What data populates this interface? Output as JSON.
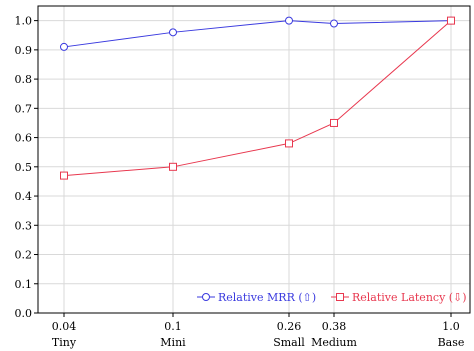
{
  "chart_data": {
    "type": "line",
    "x": [
      0.04,
      0.1,
      0.26,
      0.38,
      1.0
    ],
    "x_tick_labels": [
      "0.04",
      "0.1",
      "0.26",
      "0.38",
      "1.0"
    ],
    "x_category_labels": [
      "Tiny",
      "Mini",
      "Small",
      "Medium",
      "Base"
    ],
    "y_tick_labels": [
      "0.0",
      "0.1",
      "0.2",
      "0.3",
      "0.4",
      "0.5",
      "0.6",
      "0.7",
      "0.8",
      "0.9",
      "1.0"
    ],
    "ylim": [
      0.0,
      1.05
    ],
    "grid": true,
    "legend_position": "bottom-right",
    "series": [
      {
        "name": "Relative MRR (⇧)",
        "values": [
          0.91,
          0.96,
          1.0,
          0.99,
          1.0
        ],
        "color": "#3a3adf",
        "marker": "circle"
      },
      {
        "name": "Relative Latency (⇩)",
        "values": [
          0.47,
          0.5,
          0.58,
          0.65,
          1.0
        ],
        "color": "#e8384f",
        "marker": "square"
      }
    ]
  }
}
